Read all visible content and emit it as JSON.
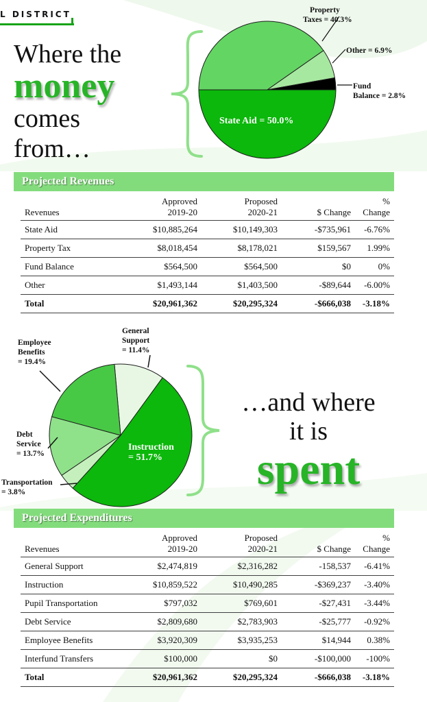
{
  "header": {
    "district": "L DISTRICT"
  },
  "revenue_headline": {
    "line1": "Where the",
    "line2": "money",
    "line3": "comes",
    "line4": "from…"
  },
  "expense_headline": {
    "line1": "…and where",
    "line2": "it is",
    "line3": "spent"
  },
  "revenue_pie": {
    "labels": {
      "property_1": "Property",
      "property_2": "Taxes = 40.3%",
      "other": "Other = 6.9%",
      "fund_1": "Fund",
      "fund_2": "Balance = 2.8%",
      "state": "State Aid = 50.0%"
    }
  },
  "expense_pie": {
    "labels": {
      "general_1": "General",
      "general_2": "Support",
      "general_3": "= 11.4%",
      "employee_1": "Employee",
      "employee_2": "Benefits",
      "employee_3": "= 19.4%",
      "debt_1": "Debt",
      "debt_2": "Service",
      "debt_3": "= 13.7%",
      "transport_1": "Transportation",
      "transport_2": "= 3.8%",
      "instruction_1": "Instruction",
      "instruction_2": "= 51.7%"
    }
  },
  "chart_data": [
    {
      "type": "pie",
      "title": "",
      "categories": [
        "Property Taxes",
        "Other",
        "Fund Balance",
        "State Aid"
      ],
      "values": [
        40.3,
        6.9,
        2.8,
        50.0
      ],
      "colors": [
        "#63d563",
        "#a7e8a0",
        "#000000",
        "#0bb80b"
      ]
    },
    {
      "type": "pie",
      "title": "",
      "categories": [
        "General Support",
        "Instruction",
        "Transportation",
        "Debt Service",
        "Employee Benefits"
      ],
      "values": [
        11.4,
        51.7,
        3.8,
        13.7,
        19.4
      ],
      "colors": [
        "#e8f7e4",
        "#0bb80b",
        "#c5f0bd",
        "#8fe28a",
        "#48c946"
      ]
    }
  ],
  "revenues": {
    "title": "Projected Revenues",
    "headers": {
      "name": "Revenues",
      "approved_1": "Approved",
      "approved_2": "2019-20",
      "proposed_1": "Proposed",
      "proposed_2": "2020-21",
      "change": "$ Change",
      "pct": "% Change"
    },
    "rows": [
      [
        "State Aid",
        "$10,885,264",
        "$10,149,303",
        "-$735,961",
        "-6.76%"
      ],
      [
        "Property Tax",
        "$8,018,454",
        "$8,178,021",
        "$159,567",
        "1.99%"
      ],
      [
        "Fund Balance",
        "$564,500",
        "$564,500",
        "$0",
        "0%"
      ],
      [
        "Other",
        "$1,493,144",
        "$1,403,500",
        "-$89,644",
        "-6.00%"
      ],
      [
        "Total",
        "$20,961,362",
        "$20,295,324",
        "-$666,038",
        "-3.18%"
      ]
    ]
  },
  "expenditures": {
    "title": "Projected Expenditures",
    "headers": {
      "name": "Revenues",
      "approved_1": "Approved",
      "approved_2": "2019-20",
      "proposed_1": "Proposed",
      "proposed_2": "2020-21",
      "change": "$ Change",
      "pct": "% Change"
    },
    "rows": [
      [
        "General Support",
        "$2,474,819",
        "$2,316,282",
        "-158,537",
        "-6.41%"
      ],
      [
        "Instruction",
        "$10,859,522",
        "$10,490,285",
        "-$369,237",
        "-3.40%"
      ],
      [
        "Pupil Transportation",
        "$797,032",
        "$769,601",
        "-$27,431",
        "-3.44%"
      ],
      [
        "Debt Service",
        "$2,809,680",
        "$2,783,903",
        "-$25,777",
        "-0.92%"
      ],
      [
        "Employee Benefits",
        "$3,920,309",
        "$3,935,253",
        "$14,944",
        "0.38%"
      ],
      [
        "Interfund Transfers",
        "$100,000",
        "$0",
        "-$100,000",
        "-100%"
      ],
      [
        "Total",
        "$20,961,362",
        "$20,295,324",
        "-$666,038",
        "-3.18%"
      ]
    ]
  }
}
